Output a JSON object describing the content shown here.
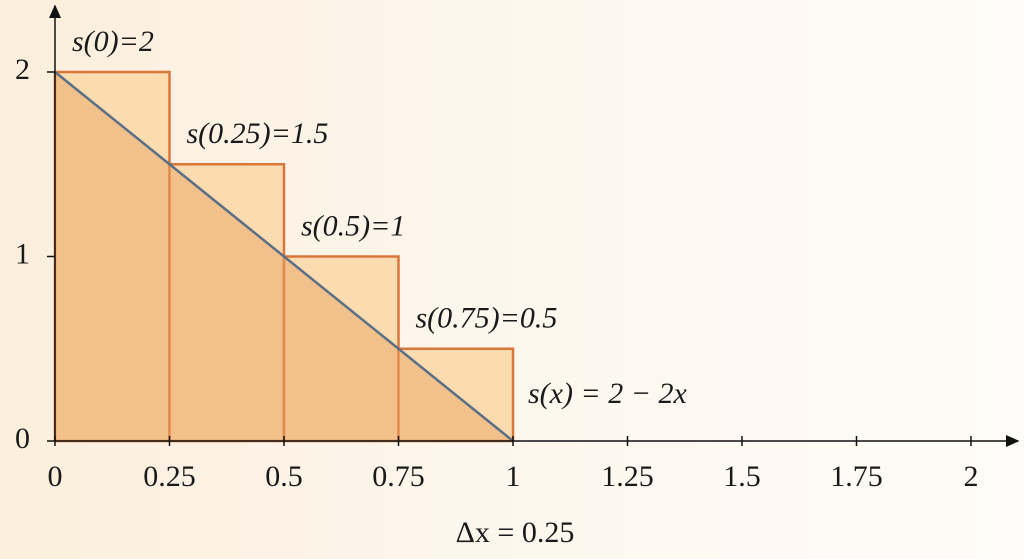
{
  "chart_data": {
    "type": "histogram",
    "bins": [
      0,
      0.25,
      0.5,
      0.75,
      1
    ],
    "values": [
      2,
      1.5,
      1,
      0.5
    ],
    "value_labels": [
      "s(0)=2",
      "s(0.25)=1.5",
      "s(0.5)=1",
      "s(0.75)=0.5"
    ],
    "color": "#fbdcb0",
    "edge_color": "#d9773a",
    "line": {
      "name": "s(x) = 2 − 2x",
      "x": [
        0,
        1
      ],
      "values": [
        2,
        0
      ],
      "color": "#5a6f85",
      "area_color": "#e9a464"
    },
    "xlabel": "Δx = 0.25",
    "xlim": [
      0,
      2.1
    ],
    "ylim": [
      0,
      2.35
    ],
    "xticks": [
      0,
      0.25,
      0.5,
      0.75,
      1,
      1.25,
      1.5,
      1.75,
      2
    ],
    "yticks": [
      0,
      1,
      2
    ]
  }
}
